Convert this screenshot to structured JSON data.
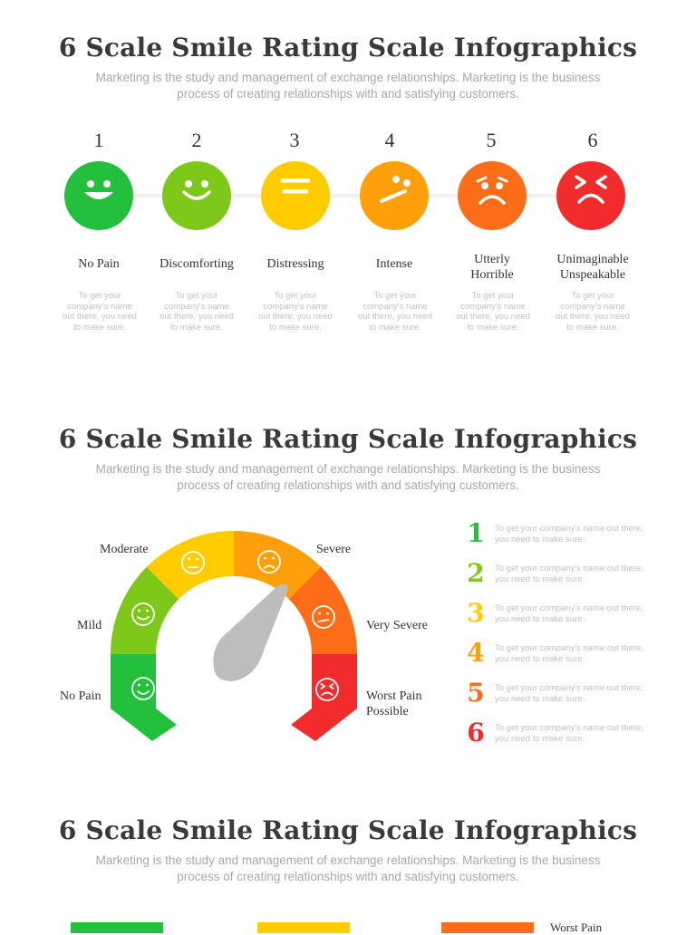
{
  "sections": [
    {
      "title": "6 Scale Smile Rating Scale Infographics",
      "subtitle_line1": "Marketing is the study and management of exchange relationships. Marketing is the business",
      "subtitle_line2": "process of creating relationships with and satisfying customers."
    },
    {
      "title": "6 Scale Smile Rating Scale Infographics",
      "subtitle_line1": "Marketing is the study and management of exchange relationships. Marketing is the business",
      "subtitle_line2": "process of creating relationships with and satisfying customers."
    },
    {
      "title": "6 Scale Smile Rating Scale Infographics",
      "subtitle_line1": "Marketing is the study and management of exchange relationships. Marketing is the business",
      "subtitle_line2": "process of creating relationships with and satisfying customers."
    }
  ],
  "scale": [
    {
      "number": "1",
      "label1": "No Pain",
      "label2": "",
      "color": "#22c03c",
      "face": "laugh-icon",
      "desc1": "To get your",
      "desc2": "company's name",
      "desc3": "out there, you need",
      "desc4": "to make sure."
    },
    {
      "number": "2",
      "label1": "Discomforting",
      "label2": "",
      "color": "#7ec81a",
      "face": "smile-icon",
      "desc1": "To get your",
      "desc2": "company's name",
      "desc3": "out there, you need",
      "desc4": "to make sure."
    },
    {
      "number": "3",
      "label1": "Distressing",
      "label2": "",
      "color": "#ffcc00",
      "face": "neutral-face-icon",
      "desc1": "To get your",
      "desc2": "company's name",
      "desc3": "out there, you need",
      "desc4": "to make sure."
    },
    {
      "number": "4",
      "label1": "Intense",
      "label2": "",
      "color": "#ff9f0a",
      "face": "skeptical-face-icon",
      "desc1": "To get your",
      "desc2": "company's name",
      "desc3": "out there, you need",
      "desc4": "to make sure."
    },
    {
      "number": "5",
      "label1": "Utterly",
      "label2": "Horrible",
      "color": "#fd6d18",
      "face": "frown-icon",
      "desc1": "To get your",
      "desc2": "company's name",
      "desc3": "out there, you need",
      "desc4": "to make sure."
    },
    {
      "number": "6",
      "label1": "Unimaginable",
      "label2": "Unspeakable",
      "color": "#f22c2c",
      "face": "anguish-face-icon",
      "desc1": "To get your",
      "desc2": "company's name",
      "desc3": "out there, you need",
      "desc4": "to make sure."
    }
  ],
  "gauge": {
    "labels": {
      "no_pain": "No Pain",
      "mild": "Mild",
      "moderate": "Moderate",
      "severe": "Severe",
      "very_severe": "Very Severe",
      "worst_line1": "Worst Pain",
      "worst_line2": "Possible"
    },
    "needle_color": "#bdbdbd"
  },
  "list": [
    {
      "number": "1",
      "color": "#22c03c",
      "line1": "To get your company's name out there,",
      "line2": "you need to make sure."
    },
    {
      "number": "2",
      "color": "#7ec81a",
      "line1": "To get your company's name out there,",
      "line2": "you need to make sure."
    },
    {
      "number": "3",
      "color": "#ffcc00",
      "line1": "To get your company's name out there,",
      "line2": "you need to make sure."
    },
    {
      "number": "4",
      "color": "#ff9f0a",
      "line1": "To get your company's name out there,",
      "line2": "you need to make sure."
    },
    {
      "number": "5",
      "color": "#fd6d18",
      "line1": "To get your company's name out there,",
      "line2": "you need to make sure."
    },
    {
      "number": "6",
      "color": "#f22c2c",
      "line1": "To get your company's name out there,",
      "line2": "you need to make sure."
    }
  ],
  "section3": {
    "partial_label": "Worst Pain"
  }
}
